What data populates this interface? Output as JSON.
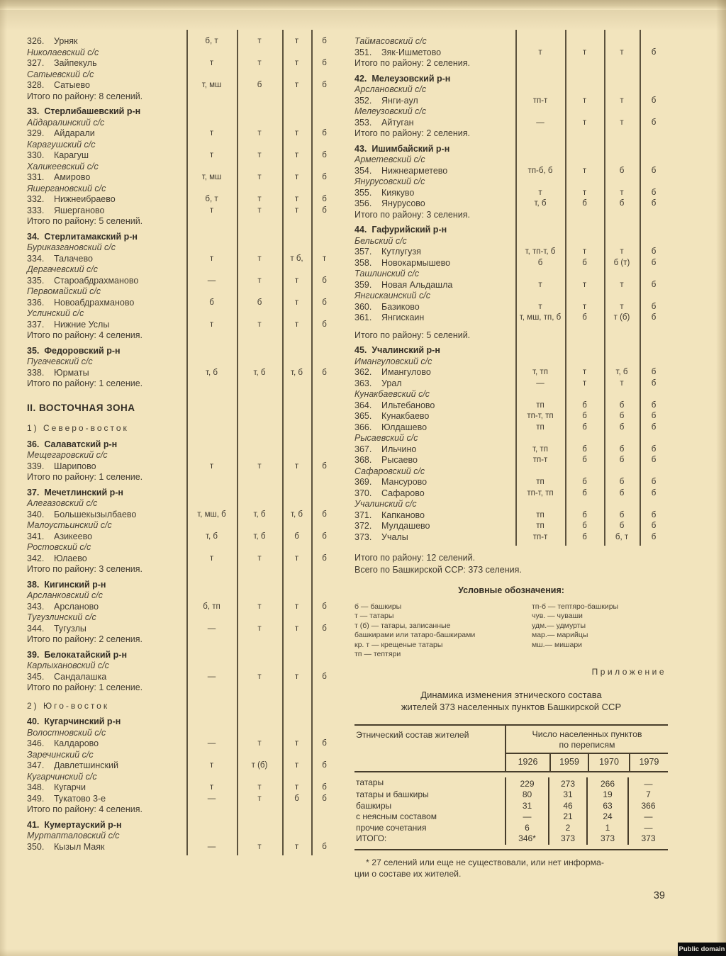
{
  "page": {
    "number": "39",
    "badge_label": "Public domain"
  },
  "left_column": {
    "blocks": [
      {
        "type": "row",
        "num": "326.",
        "name": "Урняк",
        "codes": [
          "б, т",
          "т",
          "т",
          "б"
        ]
      },
      {
        "type": "selsovet",
        "label": "Николаевский с/с"
      },
      {
        "type": "row",
        "num": "327.",
        "name": "Зайпекуль",
        "codes": [
          "т",
          "т",
          "т",
          "б"
        ]
      },
      {
        "type": "selsovet",
        "label": "Сатыевский с/с"
      },
      {
        "type": "row",
        "num": "328.",
        "name": "Сатыево",
        "codes": [
          "т, мш",
          "б",
          "т",
          "б"
        ]
      },
      {
        "type": "total",
        "label": "Итого по району: 8 селений."
      },
      {
        "type": "district",
        "label": "33.  Стерлибашевский р-н"
      },
      {
        "type": "selsovet",
        "label": "Айдаралинский с/с"
      },
      {
        "type": "row",
        "num": "329.",
        "name": "Айдарали",
        "codes": [
          "т",
          "т",
          "т",
          "б"
        ]
      },
      {
        "type": "selsovet",
        "label": "Карагушский с/с"
      },
      {
        "type": "row",
        "num": "330.",
        "name": "Карагуш",
        "codes": [
          "т",
          "т",
          "т",
          "б"
        ]
      },
      {
        "type": "selsovet",
        "label": "Халикеевский с/с"
      },
      {
        "type": "row",
        "num": "331.",
        "name": "Амирово",
        "codes": [
          "т, мш",
          "т",
          "т",
          "б"
        ]
      },
      {
        "type": "selsovet",
        "label": "Яшергановский с/с"
      },
      {
        "type": "row",
        "num": "332.",
        "name": "Нижнеибраево",
        "codes": [
          "б, т",
          "т",
          "т",
          "б"
        ]
      },
      {
        "type": "row",
        "num": "333.",
        "name": "Яшерганово",
        "codes": [
          "т",
          "т",
          "т",
          "б"
        ]
      },
      {
        "type": "total",
        "label": "Итого по району: 5 селений."
      },
      {
        "type": "district",
        "label": "34.  Стерлитамакский р-н"
      },
      {
        "type": "selsovet",
        "label": "Буриказгановский с/с"
      },
      {
        "type": "row",
        "num": "334.",
        "name": "Талачево",
        "codes": [
          "т",
          "т",
          "т б,",
          "т"
        ]
      },
      {
        "type": "selsovet",
        "label": "Дергачевский с/с"
      },
      {
        "type": "row",
        "num": "335.",
        "name": "Староабдрахманово",
        "codes": [
          "—",
          "т",
          "т",
          "б"
        ]
      },
      {
        "type": "selsovet",
        "label": "Первомайский с/с"
      },
      {
        "type": "row",
        "num": "336.",
        "name": "Новоабдрахманово",
        "codes": [
          "б",
          "б",
          "т",
          "б"
        ]
      },
      {
        "type": "selsovet",
        "label": "Услинский с/с"
      },
      {
        "type": "row",
        "num": "337.",
        "name": "Нижние Услы",
        "codes": [
          "т",
          "т",
          "т",
          "б"
        ]
      },
      {
        "type": "total",
        "label": "Итого по району: 4 селения."
      },
      {
        "type": "district",
        "label": "35.  Федоровский р-н"
      },
      {
        "type": "selsovet",
        "label": "Пугачевский с/с"
      },
      {
        "type": "row",
        "num": "338.",
        "name": "Юрматы",
        "codes": [
          "т, б",
          "т, б",
          "т, б",
          "б"
        ]
      },
      {
        "type": "total",
        "label": "Итого по району: 1 селение."
      },
      {
        "type": "zone",
        "label": "II. ВОСТОЧНАЯ ЗОНА"
      },
      {
        "type": "subzone",
        "label": "1) Северо-восток"
      },
      {
        "type": "district",
        "label": "36.  Салаватский р-н"
      },
      {
        "type": "selsovet",
        "label": "Мещегаровский с/с"
      },
      {
        "type": "row",
        "num": "339.",
        "name": "Шарипово",
        "codes": [
          "т",
          "т",
          "т",
          "б"
        ]
      },
      {
        "type": "total",
        "label": "Итого по району: 1 селение."
      },
      {
        "type": "district",
        "label": "37.  Мечетлинский р-н"
      },
      {
        "type": "selsovet",
        "label": "Алегазовский с/с"
      },
      {
        "type": "row",
        "num": "340.",
        "name": "Большекызылбаево",
        "codes": [
          "т, мш, б",
          "т, б",
          "т, б",
          "б"
        ]
      },
      {
        "type": "selsovet",
        "label": "Малоустьинский с/с"
      },
      {
        "type": "row",
        "num": "341.",
        "name": "Азикеево",
        "codes": [
          "т, б",
          "т, б",
          "б",
          "б"
        ]
      },
      {
        "type": "selsovet",
        "label": "Ростовский с/с"
      },
      {
        "type": "row",
        "num": "342.",
        "name": "Юлаево",
        "codes": [
          "т",
          "т",
          "т",
          "б"
        ]
      },
      {
        "type": "total",
        "label": "Итого по району: 3 селения."
      },
      {
        "type": "district",
        "label": "38.  Кигинский р-н"
      },
      {
        "type": "selsovet",
        "label": "Арсланковский с/с"
      },
      {
        "type": "row",
        "num": "343.",
        "name": "Арсланово",
        "codes": [
          "б, тп",
          "т",
          "т",
          "б"
        ]
      },
      {
        "type": "selsovet",
        "label": "Тугузлинский с/с"
      },
      {
        "type": "row",
        "num": "344.",
        "name": "Тугузлы",
        "codes": [
          "—",
          "т",
          "т",
          "б"
        ]
      },
      {
        "type": "total",
        "label": "Итого по району: 2 селения."
      },
      {
        "type": "district",
        "label": "39.  Белокатайский р-н"
      },
      {
        "type": "selsovet",
        "label": "Карлыхановский с/с"
      },
      {
        "type": "row",
        "num": "345.",
        "name": "Сандалашка",
        "codes": [
          "—",
          "т",
          "т",
          "б"
        ]
      },
      {
        "type": "total",
        "label": "Итого по району: 1 селение."
      },
      {
        "type": "subzone",
        "label": "2) Юго-восток"
      },
      {
        "type": "district",
        "label": "40.  Кугарчинский р-н"
      },
      {
        "type": "selsovet",
        "label": "Волостновский с/с"
      },
      {
        "type": "row",
        "num": "346.",
        "name": "Калдарово",
        "codes": [
          "—",
          "т",
          "т",
          "б"
        ]
      },
      {
        "type": "selsovet",
        "label": "Заречинский с/с"
      },
      {
        "type": "row",
        "num": "347.",
        "name": "Давлетшинский",
        "codes": [
          "т",
          "т (б)",
          "т",
          "б"
        ]
      },
      {
        "type": "selsovet",
        "label": "Кугарчинский с/с"
      },
      {
        "type": "row",
        "num": "348.",
        "name": "Кугарчи",
        "codes": [
          "т",
          "т",
          "т",
          "б"
        ]
      },
      {
        "type": "row",
        "num": "349.",
        "name": "Тукатово 3-е",
        "codes": [
          "—",
          "т",
          "б",
          "б"
        ]
      },
      {
        "type": "total",
        "label": "Итого по району: 4 селения."
      },
      {
        "type": "district",
        "label": "41.  Кумертауский р-н"
      },
      {
        "type": "selsovet",
        "label": "Муртапталовский с/с"
      },
      {
        "type": "row",
        "num": "350.",
        "name": "Кызыл Маяк",
        "codes": [
          "—",
          "т",
          "т",
          "б"
        ]
      }
    ]
  },
  "right_column": {
    "blocks": [
      {
        "type": "selsovet",
        "label": "Таймасовский с/с"
      },
      {
        "type": "row",
        "num": "351.",
        "name": "Зяк-Ишметово",
        "codes": [
          "т",
          "т",
          "т",
          "б"
        ]
      },
      {
        "type": "total",
        "label": "Итого по району: 2 селения."
      },
      {
        "type": "district",
        "label": "42.  Мелеузовский р-н"
      },
      {
        "type": "selsovet",
        "label": "Арслановский с/с"
      },
      {
        "type": "row",
        "num": "352.",
        "name": "Янги-аул",
        "codes": [
          "тп-т",
          "т",
          "т",
          "б"
        ]
      },
      {
        "type": "selsovet",
        "label": "Мелеузовский с/с"
      },
      {
        "type": "row",
        "num": "353.",
        "name": "Айтуган",
        "codes": [
          "—",
          "т",
          "т",
          "б"
        ]
      },
      {
        "type": "total",
        "label": "Итого по району: 2 селения."
      },
      {
        "type": "district",
        "label": "43.  Ишимбайский р-н"
      },
      {
        "type": "selsovet",
        "label": "Арметевский с/с"
      },
      {
        "type": "row",
        "num": "354.",
        "name": "Нижнеарметево",
        "codes": [
          "тп-б, б",
          "т",
          "б",
          "б"
        ]
      },
      {
        "type": "selsovet",
        "label": "Янурусовский с/с"
      },
      {
        "type": "row",
        "num": "355.",
        "name": "Киякуво",
        "codes": [
          "т",
          "т",
          "т",
          "б"
        ]
      },
      {
        "type": "row",
        "num": "356.",
        "name": "Янурусово",
        "codes": [
          "т, б",
          "б",
          "б",
          "б"
        ]
      },
      {
        "type": "total",
        "label": "Итого по району: 3 селения."
      },
      {
        "type": "district",
        "label": "44.  Гафурийский р-н"
      },
      {
        "type": "selsovet",
        "label": "Бельский с/с"
      },
      {
        "type": "row",
        "num": "357.",
        "name": "Кутлугузя",
        "codes": [
          "т, тп-т, б",
          "т",
          "т",
          "б"
        ]
      },
      {
        "type": "row",
        "num": "358.",
        "name": "Новокармышево",
        "codes": [
          "б",
          "б",
          "б (т)",
          "б"
        ]
      },
      {
        "type": "selsovet",
        "label": "Ташлинский с/с"
      },
      {
        "type": "row",
        "num": "359.",
        "name": "Новая Альдашла",
        "codes": [
          "т",
          "т",
          "т",
          "б"
        ]
      },
      {
        "type": "selsovet",
        "label": "Янгискаинский с/с"
      },
      {
        "type": "row",
        "num": "360.",
        "name": "Базиково",
        "codes": [
          "т",
          "т",
          "т",
          "б"
        ]
      },
      {
        "type": "row",
        "num": "361.",
        "name": "Янгискаин",
        "codes": [
          "т, мш, тп, б",
          "б",
          "т (б)",
          "б"
        ]
      },
      {
        "type": "total",
        "label": "Итого по району: 5 селений.",
        "gap": true
      },
      {
        "type": "district",
        "label": "45.  Учалинский р-н"
      },
      {
        "type": "selsovet",
        "label": "Имангуловский с/с"
      },
      {
        "type": "row",
        "num": "362.",
        "name": "Имангулово",
        "codes": [
          "т, тп",
          "т",
          "т, б",
          "б"
        ]
      },
      {
        "type": "row",
        "num": "363.",
        "name": "Урал",
        "codes": [
          "—",
          "т",
          "т",
          "б"
        ]
      },
      {
        "type": "selsovet",
        "label": "Кунакбаевский с/с"
      },
      {
        "type": "row",
        "num": "364.",
        "name": "Ильтебаново",
        "codes": [
          "тп",
          "б",
          "б",
          "б"
        ]
      },
      {
        "type": "row",
        "num": "365.",
        "name": "Кунакбаево",
        "codes": [
          "тп-т, тп",
          "б",
          "б",
          "б"
        ]
      },
      {
        "type": "row",
        "num": "366.",
        "name": "Юлдашево",
        "codes": [
          "тп",
          "б",
          "б",
          "б"
        ]
      },
      {
        "type": "selsovet",
        "label": "Рысаевский с/с"
      },
      {
        "type": "row",
        "num": "367.",
        "name": "Ильчино",
        "codes": [
          "т, тп",
          "б",
          "б",
          "б"
        ]
      },
      {
        "type": "row",
        "num": "368.",
        "name": "Рысаево",
        "codes": [
          "тп-т",
          "б",
          "б",
          "б"
        ]
      },
      {
        "type": "selsovet",
        "label": "Сафаровский с/с"
      },
      {
        "type": "row",
        "num": "369.",
        "name": "Мансурово",
        "codes": [
          "тп",
          "б",
          "б",
          "б"
        ]
      },
      {
        "type": "row",
        "num": "370.",
        "name": "Сафарово",
        "codes": [
          "тп-т, тп",
          "б",
          "б",
          "б"
        ]
      },
      {
        "type": "selsovet",
        "label": "Учалинский с/с"
      },
      {
        "type": "row",
        "num": "371.",
        "name": "Капканово",
        "codes": [
          "тп",
          "б",
          "б",
          "б"
        ]
      },
      {
        "type": "row",
        "num": "372.",
        "name": "Мулдашево",
        "codes": [
          "тп",
          "б",
          "б",
          "б"
        ]
      },
      {
        "type": "row",
        "num": "373.",
        "name": "Учалы",
        "codes": [
          "тп-т",
          "б",
          "б, т",
          "б"
        ]
      }
    ],
    "tail": {
      "district_total": "Итого по району: 12 селений.",
      "republic_total": "Всего по Башкирской ССР: 373 селения."
    }
  },
  "legend": {
    "title": "Условные обозначения:",
    "left": [
      "б — башкиры",
      "т — татары",
      "т (б) — татары, записанные",
      "башкирами или татаро-башкирами",
      "кр. т — крещеные татары",
      "тп — тептяри"
    ],
    "right": [
      "тп-б — тептяро-башкиры",
      "чув. — чуваши",
      "удм.— удмурты",
      "мар.— марийцы",
      "мш.— мишари"
    ]
  },
  "appendix": {
    "label": "Приложение",
    "title1": "Динамика изменения этнического состава",
    "title2": "жителей 373 населенных пунктов Башкирской ССР",
    "table": {
      "row_header": "Этнический состав жителей",
      "col_header1": "Число населенных пунктов",
      "col_header2": "по переписям",
      "years": [
        "1926",
        "1959",
        "1970",
        "1979"
      ],
      "rows": [
        {
          "label": "татары",
          "values": [
            "229",
            "273",
            "266",
            "—"
          ]
        },
        {
          "label": "татары и башкиры",
          "values": [
            "80",
            "31",
            "19",
            "7"
          ]
        },
        {
          "label": "башкиры",
          "values": [
            "31",
            "46",
            "63",
            "366"
          ]
        },
        {
          "label": "с неясным составом",
          "values": [
            "—",
            "21",
            "24",
            "—"
          ]
        },
        {
          "label": "прочие сочетания",
          "values": [
            "6",
            "2",
            "1",
            "—"
          ]
        },
        {
          "label": "ИТОГО:",
          "values": [
            "346*",
            "373",
            "373",
            "373"
          ]
        }
      ]
    },
    "footnote1": "* 27 селений или еще не существовали, или нет информа-",
    "footnote2": "ции о составе их жителей."
  }
}
